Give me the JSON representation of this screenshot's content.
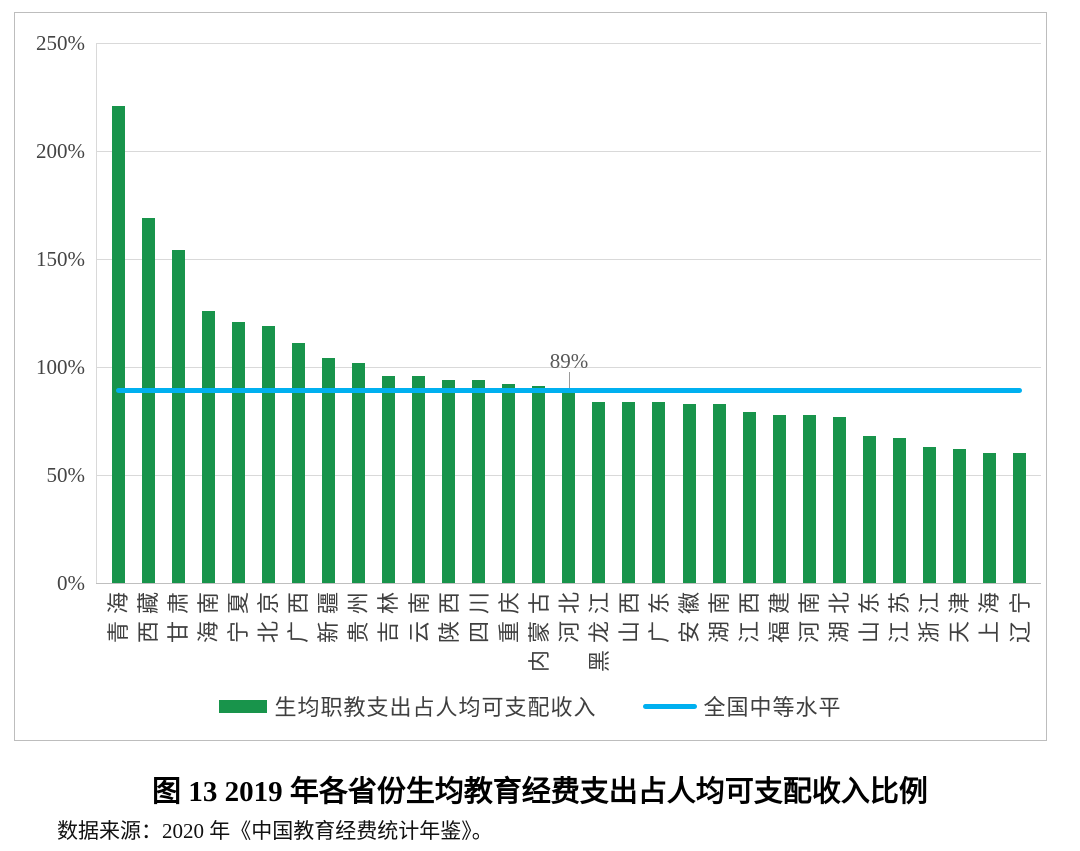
{
  "figure": {
    "title": "图 13 2019 年各省份生均教育经费支出占人均可支配收入比例",
    "source": "数据来源：2020 年《中国教育经费统计年鉴》。"
  },
  "chart_data": {
    "type": "bar",
    "categories": [
      "青海",
      "西藏",
      "甘肃",
      "海南",
      "宁夏",
      "北京",
      "广西",
      "新疆",
      "贵州",
      "吉林",
      "云南",
      "陕西",
      "四川",
      "重庆",
      "内蒙古",
      "河北",
      "黑龙江",
      "山西",
      "广东",
      "安徽",
      "湖南",
      "江西",
      "福建",
      "河南",
      "湖北",
      "山东",
      "江苏",
      "浙江",
      "天津",
      "上海",
      "辽宁"
    ],
    "series": [
      {
        "name": "生均职教支出占人均可支配收入",
        "type": "bar",
        "color": "#18944b",
        "values": [
          221,
          169,
          154,
          126,
          121,
          119,
          111,
          104,
          102,
          96,
          96,
          94,
          94,
          92,
          91,
          88,
          84,
          84,
          84,
          83,
          83,
          79,
          78,
          78,
          77,
          68,
          67,
          63,
          62,
          60,
          60
        ]
      },
      {
        "name": "全国中等水平",
        "type": "line",
        "color": "#00b0f0",
        "value": 89
      }
    ],
    "annotation": {
      "text": "89%",
      "value": 89
    },
    "ylim": [
      0,
      250
    ],
    "ytick_values": [
      0,
      50,
      100,
      150,
      200,
      250
    ],
    "ytick_labels": [
      "0%",
      "50%",
      "100%",
      "150%",
      "200%",
      "250%"
    ],
    "grid": true,
    "legend_position": "bottom",
    "colors": {
      "gridline": "#d9d9d9",
      "axis": "#bfbfbf",
      "tick_text": "#444444",
      "annotation_text": "#595959"
    }
  }
}
